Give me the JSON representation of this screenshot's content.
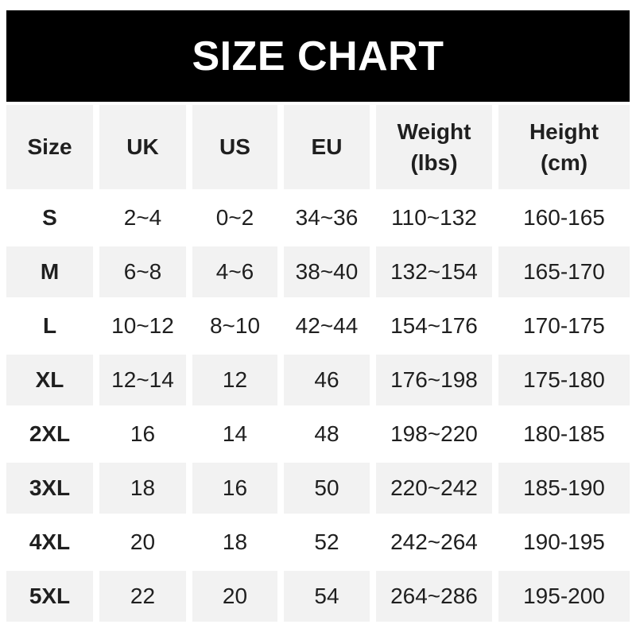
{
  "colors": {
    "banner_bg": "#000000",
    "banner_text": "#ffffff",
    "row_shade": "#f2f2f2",
    "text": "#1f1f1f",
    "background": "#ffffff"
  },
  "chart_data": {
    "type": "table",
    "title": "SIZE CHART",
    "columns": [
      {
        "label": "Size",
        "unit": ""
      },
      {
        "label": "UK",
        "unit": ""
      },
      {
        "label": "US",
        "unit": ""
      },
      {
        "label": "EU",
        "unit": ""
      },
      {
        "label": "Weight",
        "unit": "(lbs)"
      },
      {
        "label": "Height",
        "unit": "(cm)"
      }
    ],
    "rows": [
      [
        "S",
        "2~4",
        "0~2",
        "34~36",
        "110~132",
        "160-165"
      ],
      [
        "M",
        "6~8",
        "4~6",
        "38~40",
        "132~154",
        "165-170"
      ],
      [
        "L",
        "10~12",
        "8~10",
        "42~44",
        "154~176",
        "170-175"
      ],
      [
        "XL",
        "12~14",
        "12",
        "46",
        "176~198",
        "175-180"
      ],
      [
        "2XL",
        "16",
        "14",
        "48",
        "198~220",
        "180-185"
      ],
      [
        "3XL",
        "18",
        "16",
        "50",
        "220~242",
        "185-190"
      ],
      [
        "4XL",
        "20",
        "18",
        "52",
        "242~264",
        "190-195"
      ],
      [
        "5XL",
        "22",
        "20",
        "54",
        "264~286",
        "195-200"
      ]
    ]
  }
}
